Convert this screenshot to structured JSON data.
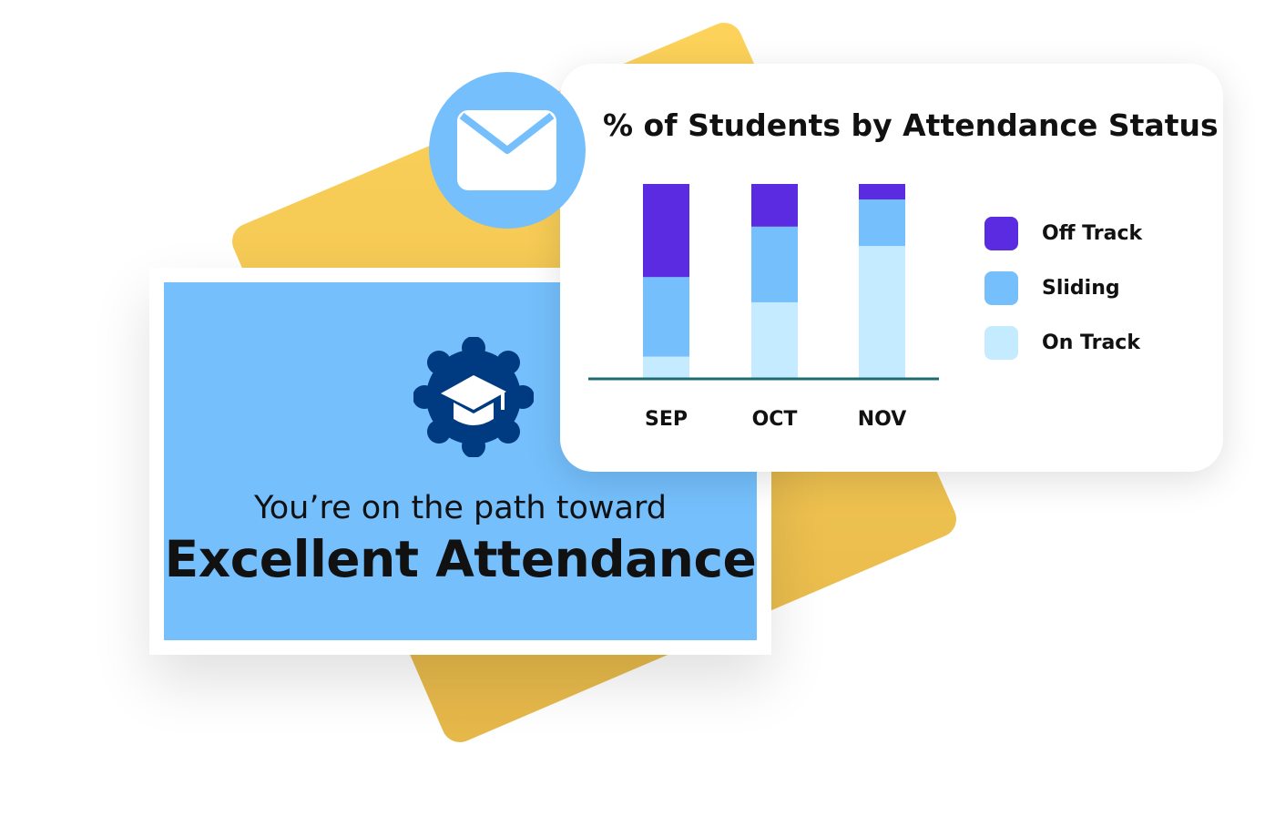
{
  "card": {
    "subtitle": "You’re on the path toward",
    "headline": "Excellent Attendance",
    "icon": "graduation-cap-gear-icon"
  },
  "envelope_icon": "envelope-icon",
  "colors": {
    "yellow": "#f9ca52",
    "card_blue": "#74bffc",
    "navy": "#003a80",
    "off_track": "#5a2be0",
    "sliding": "#74bffc",
    "on_track": "#c4ebff",
    "axis": "#1d6b6f"
  },
  "chart_data": {
    "type": "bar",
    "stacked": true,
    "title": "% of Students by Attendance Status",
    "categories": [
      "SEP",
      "OCT",
      "NOV"
    ],
    "series": [
      {
        "name": "On Track",
        "color": "#c4ebff",
        "values": [
          11,
          39,
          68
        ]
      },
      {
        "name": "Sliding",
        "color": "#74bffc",
        "values": [
          41,
          39,
          24
        ]
      },
      {
        "name": "Off Track",
        "color": "#5a2be0",
        "values": [
          48,
          22,
          8
        ]
      }
    ],
    "ylim": [
      0,
      100
    ],
    "grid": false,
    "legend_position": "right",
    "legend": [
      "Off Track",
      "Sliding",
      "On Track"
    ]
  }
}
